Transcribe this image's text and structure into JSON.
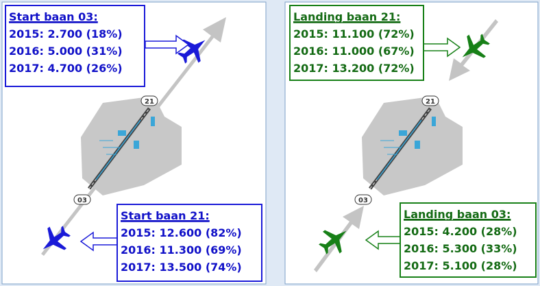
{
  "panels": [
    {
      "runway_ends": [
        "21",
        "03"
      ],
      "boxes": [
        {
          "title": "Start baan 03:",
          "lines": [
            "2015: 2.700 (18%)",
            "2016: 5.000 (31%)",
            "2017: 4.700 (26%)"
          ]
        },
        {
          "title": "Start baan 21:",
          "lines": [
            "2015: 12.600 (82%)",
            "2016: 11.300 (69%)",
            "2017: 13.500 (74%)"
          ]
        }
      ]
    },
    {
      "runway_ends": [
        "21",
        "03"
      ],
      "boxes": [
        {
          "title": "Landing baan 21:",
          "lines": [
            "2015: 11.100 (72%)",
            "2016: 11.000 (67%)",
            "2017: 13.200 (72%)"
          ]
        },
        {
          "title": "Landing baan 03:",
          "lines": [
            "2015: 4.200 (28%)",
            "2016: 5.300 (33%)",
            "2017: 5.100 (28%)"
          ]
        }
      ]
    }
  ]
}
